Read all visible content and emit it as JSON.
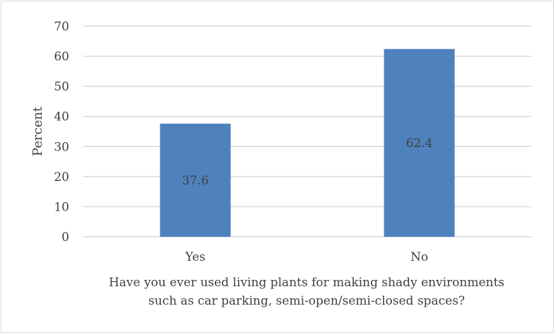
{
  "chart_data": {
    "type": "bar",
    "categories": [
      "Yes",
      "No"
    ],
    "values": [
      37.6,
      62.4
    ],
    "data_labels": [
      "37.6",
      "62.4"
    ],
    "title": "",
    "ylabel": "Percent",
    "xlabel_lines": [
      "Have you ever used living plants for making shady environments",
      "such as car parking, semi-open/semi-closed spaces?"
    ],
    "ylim": [
      0,
      70
    ],
    "yticks": [
      0,
      10,
      20,
      30,
      40,
      50,
      60,
      70
    ],
    "grid": true,
    "legend": "none",
    "colors": {
      "bar": "#4f81bd",
      "grid": "#d9d9d9",
      "text": "#404040"
    }
  }
}
